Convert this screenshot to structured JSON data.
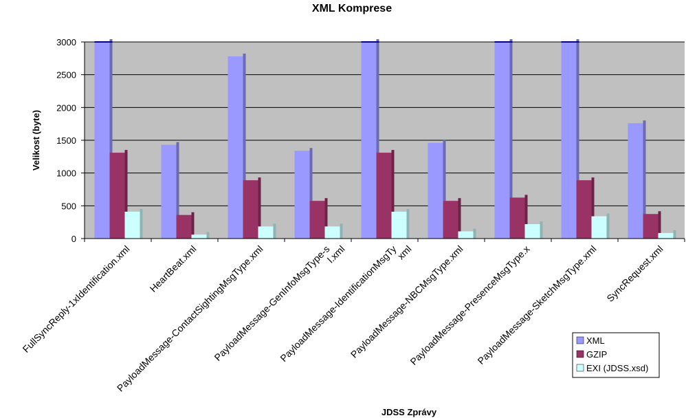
{
  "chart_data": {
    "type": "bar",
    "title": "XML Komprese",
    "xlabel": "JDSS Zprávy",
    "ylabel": "Velikost (byte)",
    "ylim": [
      0,
      3000
    ],
    "yticks": [
      0,
      500,
      1000,
      1500,
      2000,
      2500,
      3000
    ],
    "grid": true,
    "legend_position": "bottom-right",
    "categories": [
      "FullSyncReply-1xIdentification.xml",
      "HeartBeat.xml",
      "PayloadMessage-ContactSightingMsgType.xml",
      "PayloadMessage-GenInfoMsgType-s",
      "PayloadMessage-IdentificationMsgTy",
      "PayloadMessage-NBCMsgType.xml",
      "PayloadMessage-PresenceMsgType.x",
      "PayloadMessage-SketchMsgType.xml",
      "SyncRequest.xml"
    ],
    "category_extra_labels": [
      "",
      "",
      "",
      "l.xml",
      "xml",
      "",
      "",
      "",
      ""
    ],
    "series": [
      {
        "name": "XML",
        "color": "#9999ff",
        "values": [
          3000,
          1430,
          2780,
          1340,
          3000,
          1460,
          3000,
          3000,
          1760
        ]
      },
      {
        "name": "GZIP",
        "color": "#993366",
        "values": [
          1310,
          360,
          890,
          575,
          1310,
          575,
          625,
          890,
          375
        ]
      },
      {
        "name": "EXI (JDSS.xsd)",
        "color": "#ccffff",
        "values": [
          410,
          60,
          185,
          185,
          410,
          110,
          220,
          340,
          85
        ]
      }
    ],
    "colors": {
      "plot_background": "#c0c0c0",
      "gridline": "#000000"
    }
  }
}
